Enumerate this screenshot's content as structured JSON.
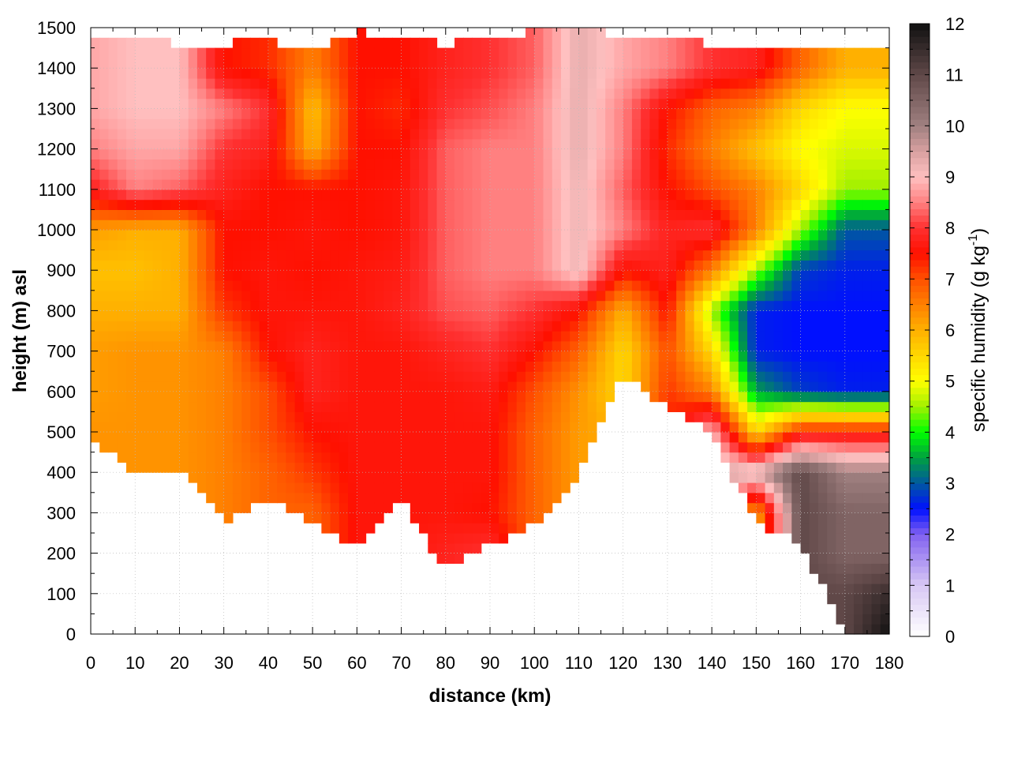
{
  "chart_data": {
    "type": "heatmap",
    "title": "",
    "xlabel": "distance (km)",
    "ylabel": "height (m) asl",
    "colorbar_label": {
      "text": "specific humidity (g kg",
      "superscript": "-1",
      "suffix": ")"
    },
    "xlim": [
      0,
      180
    ],
    "ylim": [
      0,
      1500
    ],
    "clim": [
      0,
      12
    ],
    "grid": true,
    "x_ticks": [
      0,
      10,
      20,
      30,
      40,
      50,
      60,
      70,
      80,
      90,
      100,
      110,
      120,
      130,
      140,
      150,
      160,
      170,
      180
    ],
    "y_ticks": [
      0,
      100,
      200,
      300,
      400,
      500,
      600,
      700,
      800,
      900,
      1000,
      1100,
      1200,
      1300,
      1400,
      1500
    ],
    "colorbar_ticks": [
      0,
      1,
      2,
      3,
      4,
      5,
      6,
      7,
      8,
      9,
      10,
      11,
      12
    ],
    "colormap": [
      [
        0,
        "#ffffff"
      ],
      [
        1,
        "#d8c8f4"
      ],
      [
        2,
        "#8060f0"
      ],
      [
        2.5,
        "#0010ff"
      ],
      [
        3,
        "#0058a0"
      ],
      [
        3.5,
        "#00a040"
      ],
      [
        4,
        "#00ff00"
      ],
      [
        4.5,
        "#a0f000"
      ],
      [
        5,
        "#ffff00"
      ],
      [
        5.5,
        "#ffd800"
      ],
      [
        6,
        "#ffb000"
      ],
      [
        6.5,
        "#ff8000"
      ],
      [
        7,
        "#ff5000"
      ],
      [
        7.5,
        "#ff1000"
      ],
      [
        8,
        "#ff3030"
      ],
      [
        8.5,
        "#ff8080"
      ],
      [
        9,
        "#ffc0c0"
      ],
      [
        9.5,
        "#d8a0a0"
      ],
      [
        10,
        "#a08080"
      ],
      [
        11,
        "#604848"
      ],
      [
        12,
        "#101010"
      ]
    ],
    "x": [
      0,
      10,
      20,
      30,
      40,
      50,
      60,
      70,
      80,
      90,
      100,
      110,
      120,
      130,
      140,
      150,
      160,
      170,
      180
    ],
    "y": [
      1500,
      1400,
      1300,
      1200,
      1100,
      1000,
      900,
      800,
      700,
      600,
      500,
      400,
      300,
      200,
      100,
      0
    ],
    "values": [
      [
        8.8,
        9.0,
        9.0,
        7.5,
        7.3,
        6.5,
        7.5,
        7.5,
        7.8,
        8.0,
        8.3,
        9.3,
        8.8,
        8.5,
        8.0,
        7.8,
        6.8,
        6.0,
        6.0
      ],
      [
        8.8,
        9.0,
        9.0,
        7.5,
        7.3,
        6.5,
        7.5,
        7.5,
        7.8,
        8.0,
        8.3,
        9.3,
        8.8,
        8.5,
        8.0,
        7.8,
        6.8,
        6.0,
        6.0
      ],
      [
        8.8,
        9.0,
        9.0,
        8.5,
        8.0,
        5.8,
        7.5,
        7.3,
        8.0,
        8.2,
        8.5,
        9.3,
        8.5,
        7.5,
        6.8,
        6.5,
        5.5,
        5.0,
        5.0
      ],
      [
        8.5,
        8.8,
        8.8,
        8.0,
        7.8,
        6.0,
        7.5,
        7.5,
        8.3,
        8.5,
        8.5,
        9.3,
        8.5,
        7.3,
        6.5,
        5.8,
        5.0,
        4.8,
        4.8
      ],
      [
        7.8,
        8.5,
        8.3,
        7.8,
        7.5,
        7.5,
        7.5,
        7.6,
        8.3,
        8.5,
        8.5,
        9.2,
        8.3,
        7.5,
        7.0,
        6.5,
        5.5,
        4.5,
        4.5
      ],
      [
        6.2,
        6.0,
        6.0,
        7.5,
        7.5,
        7.6,
        7.5,
        7.6,
        8.3,
        8.5,
        8.5,
        9.2,
        8.5,
        7.8,
        8.0,
        6.5,
        4.5,
        3.0,
        3.0
      ],
      [
        5.8,
        5.8,
        6.0,
        7.5,
        7.6,
        7.5,
        7.6,
        7.7,
        8.3,
        8.5,
        8.5,
        9.2,
        7.5,
        7.8,
        6.5,
        4.5,
        2.8,
        2.6,
        2.6
      ],
      [
        6.0,
        6.0,
        6.0,
        7.2,
        7.6,
        7.6,
        7.6,
        7.8,
        8.2,
        8.3,
        8.0,
        7.5,
        6.0,
        7.5,
        4.5,
        2.6,
        2.5,
        2.5,
        2.5
      ],
      [
        6.2,
        6.3,
        6.3,
        6.5,
        7.5,
        7.8,
        7.6,
        7.6,
        7.8,
        8.0,
        7.5,
        6.8,
        5.5,
        7.0,
        5.5,
        2.6,
        2.5,
        2.5,
        2.5
      ],
      [
        6.2,
        6.3,
        6.3,
        6.5,
        7.0,
        7.8,
        7.6,
        7.6,
        7.6,
        7.7,
        7.0,
        6.3,
        5.5,
        7.2,
        6.5,
        3.5,
        2.8,
        2.6,
        2.6
      ],
      [
        6.3,
        6.3,
        6.3,
        6.5,
        7.0,
        7.5,
        7.6,
        7.6,
        7.6,
        7.6,
        6.8,
        6.2,
        6.0,
        7.4,
        9.0,
        5.5,
        7.5,
        7.5,
        7.5
      ],
      [
        6.3,
        6.3,
        6.3,
        6.5,
        6.8,
        7.2,
        7.6,
        7.6,
        7.6,
        7.6,
        6.8,
        6.2,
        6.0,
        7.4,
        9.5,
        9.5,
        11.0,
        10.0,
        10.0
      ],
      [
        6.3,
        6.3,
        6.3,
        6.5,
        6.8,
        6.8,
        7.6,
        7.6,
        7.6,
        7.5,
        6.8,
        6.2,
        6.0,
        7.4,
        9.5,
        6.0,
        11.0,
        10.5,
        10.5
      ],
      [
        6.3,
        6.3,
        6.3,
        6.5,
        6.8,
        6.8,
        7.6,
        7.6,
        7.8,
        8.0,
        6.8,
        6.2,
        6.0,
        7.4,
        9.5,
        6.0,
        11.0,
        10.5,
        10.5
      ],
      [
        6.3,
        6.3,
        6.3,
        6.5,
        6.8,
        6.8,
        7.6,
        7.6,
        7.8,
        8.0,
        6.8,
        6.2,
        6.0,
        7.4,
        9.5,
        6.0,
        11.0,
        11.0,
        11.5
      ],
      [
        6.3,
        6.3,
        6.3,
        6.5,
        6.8,
        6.8,
        7.6,
        7.6,
        7.8,
        8.0,
        6.8,
        6.2,
        6.0,
        7.4,
        9.5,
        6.0,
        11.0,
        11.0,
        12.0
      ]
    ],
    "surface_height_m": [
      480,
      400,
      400,
      280,
      330,
      280,
      210,
      330,
      160,
      220,
      270,
      400,
      640,
      560,
      500,
      270,
      230,
      0,
      0
    ],
    "data_top_m": [
      1480,
      1470,
      1460,
      1460,
      1470,
      1440,
      1490,
      1480,
      1460,
      1480,
      1490,
      1500,
      1480,
      1470,
      1460,
      1450,
      1440,
      1440,
      1440
    ]
  }
}
